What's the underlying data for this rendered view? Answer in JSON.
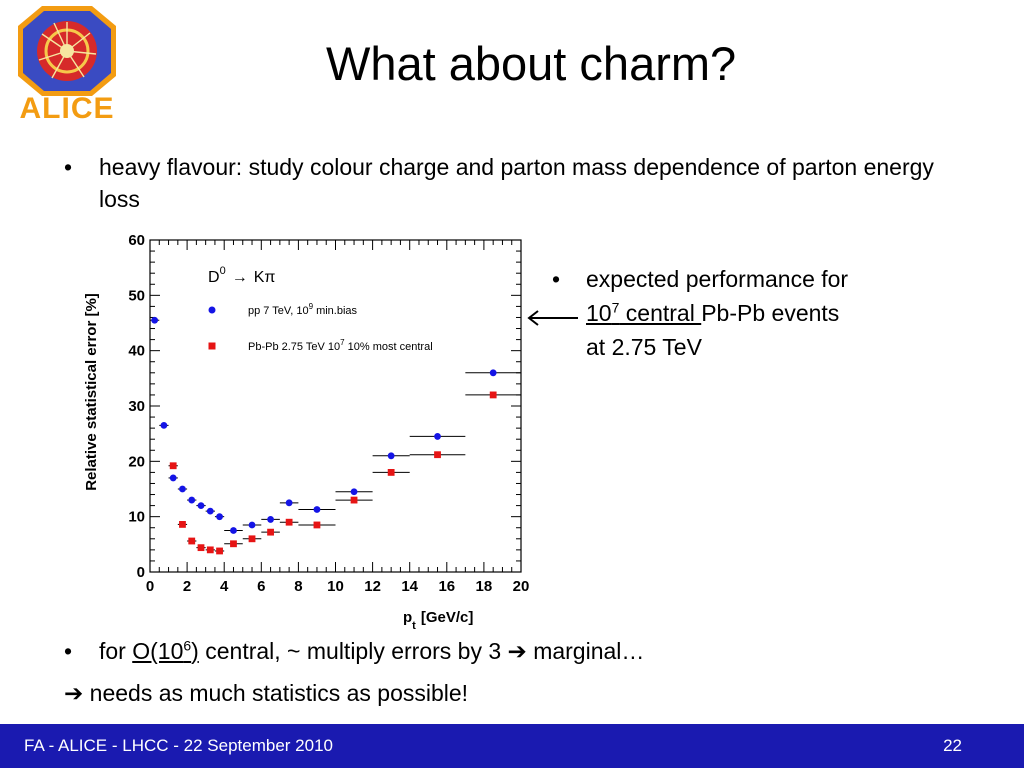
{
  "slide": {
    "title": "What about charm?",
    "logo_text": "ALICE",
    "bullets": [
      {
        "text": "heavy flavour: study colour charge and parton mass dependence of parton energy loss"
      },
      {
        "line1": "expected performance for",
        "exp_base": "10",
        "exp": "7",
        "underlined_rest": " central ",
        "after": "Pb-Pb events",
        "line3": "at 2.75 TeV"
      },
      {
        "pre": "for ",
        "underlined": "O(10",
        "exp": "6",
        "underlined_close": ")",
        "post": " central, ~ multiply errors by 3 ➔ marginal…"
      },
      {
        "text": "➔ needs as much statistics as possible!"
      }
    ],
    "bullet_char": "•"
  },
  "footer": {
    "text": "FA - ALICE - LHCC - 22 September 2010",
    "page": "22"
  },
  "colors": {
    "footer_bg": "#1a1ab0",
    "pp": "#1414e6",
    "pbpb": "#e61414",
    "logo_orange": "#f39c12",
    "logo_red": "#d62a2a",
    "logo_blue": "#3a4bc2"
  },
  "chart_data": {
    "type": "scatter",
    "xlabel_main": "p",
    "xlabel_sub": "t",
    "xlabel_unit": "[GeV/c]",
    "ylabel": "Relative statistical error [%]",
    "xlim": [
      0,
      20
    ],
    "ylim": [
      0,
      60
    ],
    "xticks": [
      0,
      2,
      4,
      6,
      8,
      10,
      12,
      14,
      16,
      18,
      20
    ],
    "yticks": [
      0,
      10,
      20,
      30,
      40,
      50,
      60
    ],
    "decay_label": {
      "d": "D",
      "dsup": "0",
      "arrow": "→",
      "k": "K",
      "pi": "π"
    },
    "series": [
      {
        "name": "pp 7 TeV, 10",
        "name_exp": "9",
        "name_tail": " min.bias",
        "marker": "circle",
        "points": [
          {
            "x": 0.25,
            "xerr": 0.25,
            "y": 45.5
          },
          {
            "x": 0.75,
            "xerr": 0.25,
            "y": 26.5
          },
          {
            "x": 1.25,
            "xerr": 0.25,
            "y": 17.0
          },
          {
            "x": 1.75,
            "xerr": 0.25,
            "y": 15.0
          },
          {
            "x": 2.25,
            "xerr": 0.25,
            "y": 13.0
          },
          {
            "x": 2.75,
            "xerr": 0.25,
            "y": 12.0
          },
          {
            "x": 3.25,
            "xerr": 0.25,
            "y": 11.0
          },
          {
            "x": 3.75,
            "xerr": 0.25,
            "y": 10.0
          },
          {
            "x": 4.5,
            "xerr": 0.5,
            "y": 7.5
          },
          {
            "x": 5.5,
            "xerr": 0.5,
            "y": 8.5
          },
          {
            "x": 6.5,
            "xerr": 0.5,
            "y": 9.5
          },
          {
            "x": 7.5,
            "xerr": 0.5,
            "y": 12.5
          },
          {
            "x": 9.0,
            "xerr": 1.0,
            "y": 11.3
          },
          {
            "x": 11.0,
            "xerr": 1.0,
            "y": 14.5
          },
          {
            "x": 13.0,
            "xerr": 1.0,
            "y": 21.0
          },
          {
            "x": 15.5,
            "xerr": 1.5,
            "y": 24.5
          },
          {
            "x": 18.5,
            "xerr": 1.5,
            "y": 36.0
          }
        ]
      },
      {
        "name": "Pb-Pb 2.75 TeV 10",
        "name_exp": "7",
        "name_tail": " 10% most central",
        "marker": "square",
        "points": [
          {
            "x": 1.25,
            "xerr": 0.25,
            "y": 19.2
          },
          {
            "x": 1.75,
            "xerr": 0.25,
            "y": 8.6
          },
          {
            "x": 2.25,
            "xerr": 0.25,
            "y": 5.6
          },
          {
            "x": 2.75,
            "xerr": 0.25,
            "y": 4.4
          },
          {
            "x": 3.25,
            "xerr": 0.25,
            "y": 4.0
          },
          {
            "x": 3.75,
            "xerr": 0.25,
            "y": 3.8
          },
          {
            "x": 4.5,
            "xerr": 0.5,
            "y": 5.1
          },
          {
            "x": 5.5,
            "xerr": 0.5,
            "y": 6.0
          },
          {
            "x": 6.5,
            "xerr": 0.5,
            "y": 7.2
          },
          {
            "x": 7.5,
            "xerr": 0.5,
            "y": 9.0
          },
          {
            "x": 9.0,
            "xerr": 1.0,
            "y": 8.5
          },
          {
            "x": 11.0,
            "xerr": 1.0,
            "y": 13.0
          },
          {
            "x": 13.0,
            "xerr": 1.0,
            "y": 18.0
          },
          {
            "x": 15.5,
            "xerr": 1.5,
            "y": 21.2
          },
          {
            "x": 18.5,
            "xerr": 1.5,
            "y": 32.0
          }
        ]
      }
    ]
  }
}
